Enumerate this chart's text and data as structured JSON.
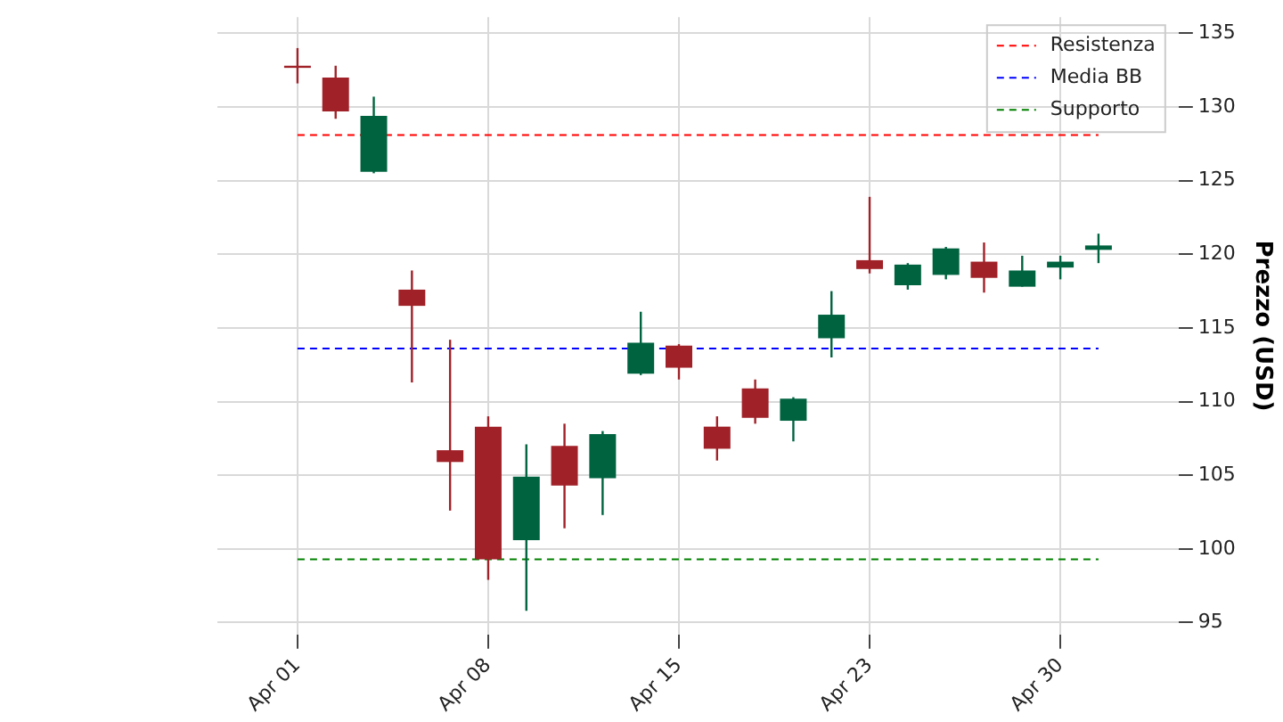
{
  "chart_data": {
    "type": "candlestick",
    "ylabel": "Prezzo (USD)",
    "categories": [
      "Apr 01",
      null,
      null,
      null,
      null,
      "Apr 08",
      null,
      null,
      null,
      null,
      "Apr 15",
      null,
      null,
      null,
      null,
      "Apr 23",
      null,
      null,
      null,
      null,
      "Apr 30",
      null
    ],
    "ohlc": [
      [
        132.8,
        134.0,
        131.6,
        132.7
      ],
      [
        132.0,
        132.8,
        129.2,
        129.7
      ],
      [
        125.6,
        130.7,
        125.5,
        129.4
      ],
      [
        117.6,
        118.9,
        111.3,
        116.5
      ],
      [
        106.7,
        114.2,
        102.6,
        105.9
      ],
      [
        108.3,
        109.0,
        97.9,
        99.3
      ],
      [
        100.6,
        107.1,
        95.8,
        104.9
      ],
      [
        107.0,
        108.5,
        101.4,
        104.3
      ],
      [
        104.8,
        108.0,
        102.3,
        107.8
      ],
      [
        111.9,
        116.1,
        111.8,
        114.0
      ],
      [
        113.8,
        113.9,
        111.5,
        112.3
      ],
      [
        108.3,
        109.0,
        106.0,
        106.8
      ],
      [
        110.9,
        111.5,
        108.5,
        108.9
      ],
      [
        108.7,
        110.3,
        107.3,
        110.2
      ],
      [
        114.3,
        117.5,
        113.0,
        115.9
      ],
      [
        119.6,
        123.9,
        118.7,
        119.0
      ],
      [
        117.9,
        119.4,
        117.6,
        119.3
      ],
      [
        118.6,
        120.5,
        118.3,
        120.4
      ],
      [
        119.5,
        120.8,
        117.4,
        118.4
      ],
      [
        117.8,
        119.9,
        117.8,
        118.9
      ],
      [
        119.1,
        119.9,
        118.3,
        119.5
      ],
      [
        120.3,
        121.4,
        119.4,
        120.6
      ]
    ],
    "colors": [
      "#a02128",
      "#a02128",
      "#006340",
      "#a02128",
      "#a02128",
      "#a02128",
      "#006340",
      "#a02128",
      "#006340",
      "#006340",
      "#a02128",
      "#a02128",
      "#a02128",
      "#006340",
      "#006340",
      "#a02128",
      "#006340",
      "#006340",
      "#a02128",
      "#006340",
      "#006340",
      "#006340"
    ],
    "ylim": [
      94.2,
      136.1
    ],
    "yticks": [
      95,
      100,
      105,
      110,
      115,
      120,
      125,
      130,
      135
    ],
    "ref_lines": [
      {
        "axis": "y",
        "value": 128.1,
        "label": "Resistenza",
        "color": "#ff0000",
        "line_style": "dashed"
      },
      {
        "axis": "y",
        "value": 113.6,
        "label": "Media BB",
        "color": "#0000ff",
        "line_style": "dashed"
      },
      {
        "axis": "y",
        "value": 99.3,
        "label": "Supporto",
        "color": "#008000",
        "line_style": "dashed"
      }
    ],
    "grid": true,
    "legend": "top right"
  }
}
